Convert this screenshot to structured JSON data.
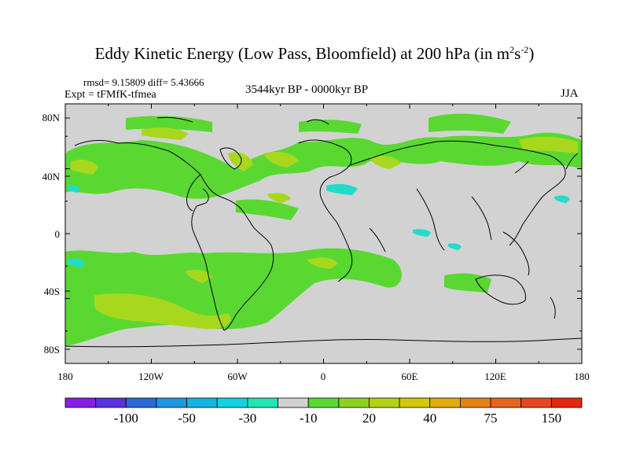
{
  "title": {
    "main": "Eddy Kinetic Energy (Low Pass, Bloomfield) at 200 hPa (in m",
    "sup1": "2",
    "mid": "s",
    "sup2": "-2",
    "close": ")"
  },
  "stats": "rmsd= 9.15809 diff= 5.43666",
  "experiment": "Expt = tFMfK-tfmea",
  "period": "3544kyr BP - 0000kyr BP",
  "season": "JJA",
  "lat_ticks": [
    "80N",
    "40N",
    "0",
    "40S",
    "80S"
  ],
  "lon_ticks": [
    "180",
    "120W",
    "60W",
    "0",
    "60E",
    "120E",
    "180"
  ],
  "colorbar": {
    "colors": [
      "#8a1ee6",
      "#5a32e0",
      "#2a6ad8",
      "#1e96e0",
      "#14b4e6",
      "#14d2e6",
      "#1ee6b4",
      "#d2d2d2",
      "#5ad832",
      "#8cd21e",
      "#b4d214",
      "#d2c80a",
      "#e6aa0a",
      "#e68214",
      "#e6641e",
      "#e6461e",
      "#e6280a"
    ],
    "labels": [
      "-100",
      "-50",
      "-30",
      "-10",
      "20",
      "40",
      "75",
      "150"
    ]
  },
  "colors": {
    "background": "#d2d2d2",
    "green": "#5ad832",
    "yellowgreen": "#a8d81e",
    "cyan": "#20dcc8"
  }
}
